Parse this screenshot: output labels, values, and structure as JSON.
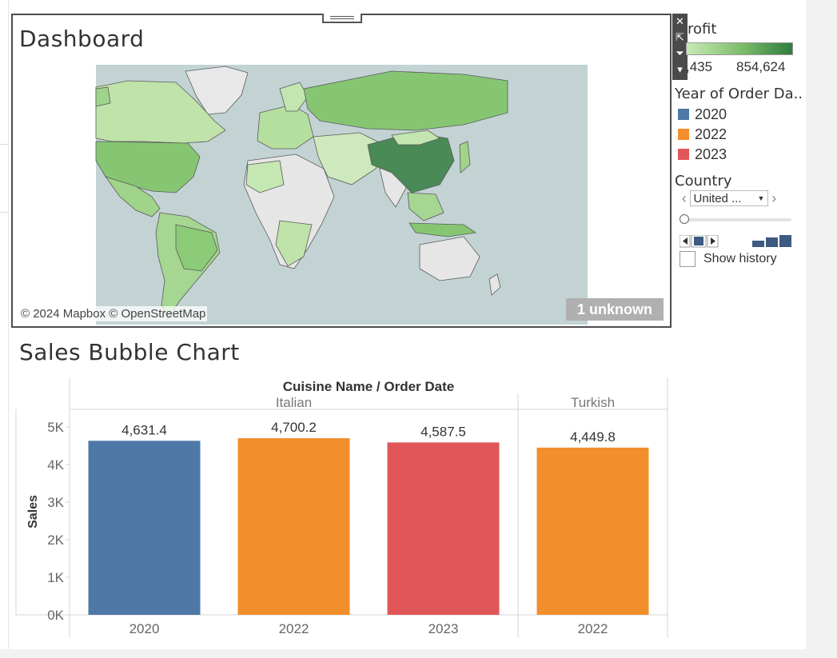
{
  "map_zone": {
    "title": "Dashboard",
    "attribution": "© 2024 Mapbox © OpenStreetMap",
    "unknown_badge": "1 unknown",
    "toolbar": {
      "close_glyph": "✕",
      "popout_glyph": "⇱",
      "filter_glyph": "⏷",
      "more_glyph": "▾"
    }
  },
  "legend": {
    "profit_title": "rofit",
    "profit_min": ",435",
    "profit_max": "854,624",
    "year_title": "Year of Order Da..",
    "years": [
      {
        "label": "2020",
        "color": "#4e79a7"
      },
      {
        "label": "2022",
        "color": "#f28e2b"
      },
      {
        "label": "2023",
        "color": "#e15759"
      }
    ],
    "country_title": "Country",
    "country_value": "United ...",
    "show_history_label": "Show history"
  },
  "chart": {
    "title": "Sales Bubble Chart"
  },
  "chart_data": {
    "type": "bar",
    "header": "Cuisine Name  /  Order Date",
    "ylabel": "Sales",
    "ylim": [
      0,
      5000
    ],
    "yticks": [
      {
        "value": 0,
        "label": "0K"
      },
      {
        "value": 1000,
        "label": "1K"
      },
      {
        "value": 2000,
        "label": "2K"
      },
      {
        "value": 3000,
        "label": "3K"
      },
      {
        "value": 4000,
        "label": "4K"
      },
      {
        "value": 5000,
        "label": "5K"
      }
    ],
    "panes": [
      {
        "name": "Italian",
        "bars": [
          {
            "category": "2020",
            "value": 4631.4,
            "label": "4,631.4",
            "color": "#4e79a7"
          },
          {
            "category": "2022",
            "value": 4700.2,
            "label": "4,700.2",
            "color": "#f28e2b"
          },
          {
            "category": "2023",
            "value": 4587.5,
            "label": "4,587.5",
            "color": "#e15759"
          }
        ]
      },
      {
        "name": "Turkish",
        "bars": [
          {
            "category": "2022",
            "value": 4449.8,
            "label": "4,449.8",
            "color": "#f28e2b"
          }
        ]
      }
    ],
    "grid": false
  }
}
